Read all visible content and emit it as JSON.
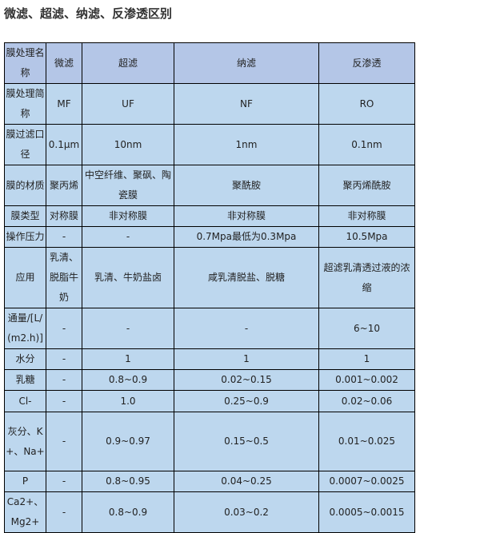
{
  "title": "微滤、超滤、纳滤、反渗透区别",
  "table": {
    "rows": [
      [
        "膜处理名称",
        "微滤",
        "超滤",
        "纳滤",
        "反渗透"
      ],
      [
        "膜处理简称",
        "MF",
        "UF",
        "NF",
        "RO"
      ],
      [
        "膜过滤口径",
        "0.1μm",
        "10nm",
        "1nm",
        "0.1nm"
      ],
      [
        "膜的材质",
        "聚丙烯",
        "中空纤维、聚砜、陶瓷膜",
        "聚酰胺",
        "聚丙烯酰胺"
      ],
      [
        "膜类型",
        "对称膜",
        "非对称膜",
        "非对称膜",
        "非对称膜"
      ],
      [
        "操作压力",
        "-",
        "-",
        "0.7Mpa最低为0.3Mpa",
        "10.5Mpa"
      ],
      [
        "应用",
        "乳清、脱脂牛奶",
        "乳清、牛奶盐卤",
        "咸乳清脱盐、脱糖",
        "超滤乳清透过液的浓缩"
      ],
      [
        "通量/[L/(m2.h)]",
        "-",
        "-",
        "-",
        "6~10"
      ],
      [
        "水分",
        "-",
        "1",
        "1",
        "1"
      ],
      [
        "乳糖",
        "-",
        "0.8~0.9",
        "0.02~0.15",
        "0.001~0.002"
      ],
      [
        "Cl-",
        "-",
        "1.0",
        "0.25~0.9",
        "0.02~0.06"
      ],
      [
        "灰分、K+、Na+",
        "-",
        "0.9~0.97",
        "0.15~0.5",
        "0.01~0.025"
      ],
      [
        "P",
        "-",
        "0.8~0.95",
        "0.04~0.25",
        "0.0007~0.0025"
      ],
      [
        "Ca2+、Mg2+",
        "-",
        "0.8~0.9",
        "0.03~0.2",
        "0.0005~0.0015"
      ]
    ]
  },
  "colors": {
    "header_bg": "#b4c6e7",
    "body_bg": "#bdd7ee"
  }
}
